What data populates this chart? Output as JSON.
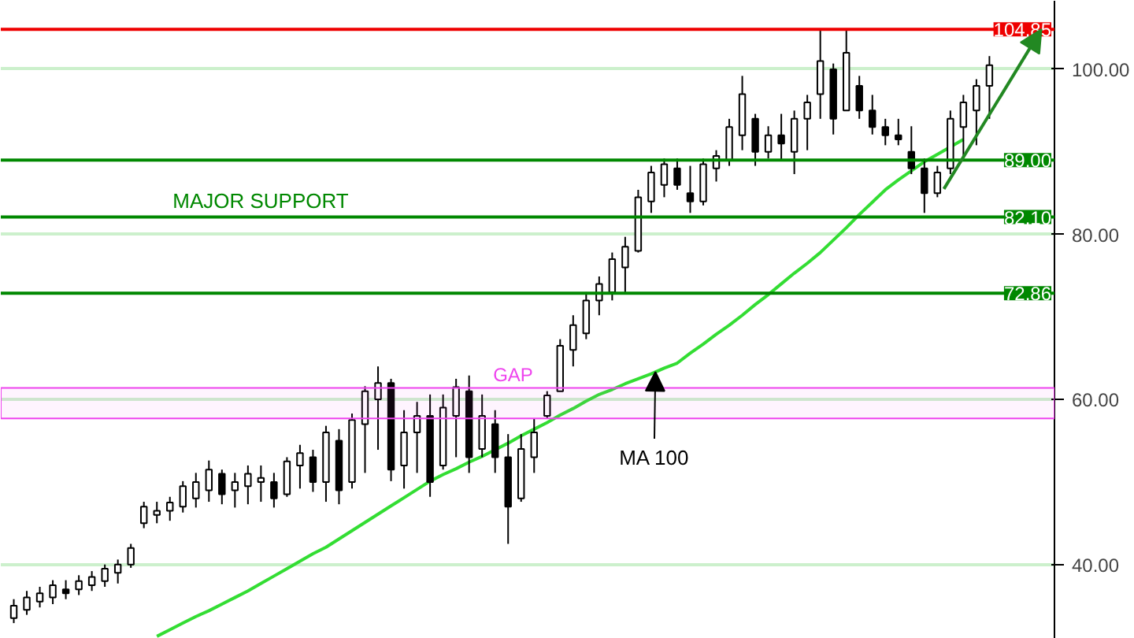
{
  "chart_data": {
    "type": "candlestick",
    "categories": [
      null,
      null,
      null,
      null,
      null,
      null,
      null,
      null,
      null,
      null,
      null,
      null,
      null,
      null,
      null,
      null,
      null,
      null,
      null,
      null,
      null,
      null,
      null,
      null,
      null,
      null,
      null,
      null,
      null,
      null,
      null,
      null,
      null,
      null,
      null,
      null,
      null,
      null,
      null,
      null,
      null,
      null,
      null,
      null,
      null,
      null,
      null,
      null,
      null,
      null,
      null,
      null,
      null,
      null,
      null,
      null,
      null,
      null,
      null,
      null,
      null,
      null,
      null,
      null,
      null,
      null,
      null,
      null,
      null,
      null,
      null,
      null,
      null,
      null,
      null,
      null
    ],
    "ohlc": [
      [
        33.5,
        35.8,
        32.9,
        35
      ],
      [
        34.5,
        36.8,
        33.9,
        36
      ],
      [
        35.5,
        37.3,
        34.8,
        36.5
      ],
      [
        36,
        38.1,
        35.2,
        37.5
      ],
      [
        37,
        38.1,
        35.8,
        36.5
      ],
      [
        37,
        38.7,
        36.3,
        38
      ],
      [
        37.5,
        39.2,
        36.8,
        38.5
      ],
      [
        38,
        40,
        37.3,
        39.5
      ],
      [
        39,
        40.6,
        37.7,
        40
      ],
      [
        40,
        42.5,
        39.6,
        42
      ],
      [
        45,
        47.6,
        44.4,
        47
      ],
      [
        46,
        47.6,
        45,
        46.5
      ],
      [
        46.5,
        48.2,
        45.3,
        47.5
      ],
      [
        47,
        50.1,
        46.3,
        49.5
      ],
      [
        48,
        51.1,
        46.9,
        50
      ],
      [
        49,
        52.6,
        47.6,
        51.5
      ],
      [
        51,
        51.5,
        47.3,
        48.5
      ],
      [
        49,
        51.1,
        46.9,
        50
      ],
      [
        49.5,
        52,
        47.3,
        51
      ],
      [
        50,
        52,
        47.6,
        50.5
      ],
      [
        50,
        51.1,
        46.9,
        48
      ],
      [
        48.5,
        53,
        48.2,
        52.5
      ],
      [
        52,
        54.5,
        49.2,
        53.5
      ],
      [
        53,
        53.9,
        48.8,
        50
      ],
      [
        50,
        56.8,
        47.6,
        56
      ],
      [
        55,
        56.4,
        47.3,
        49
      ],
      [
        50,
        58.3,
        49.2,
        57.5
      ],
      [
        57,
        61.6,
        51.1,
        61
      ],
      [
        60,
        64,
        53.9,
        62
      ],
      [
        62,
        62.5,
        50.1,
        51.5
      ],
      [
        52,
        58.7,
        49.2,
        56
      ],
      [
        56,
        59.7,
        51.1,
        58
      ],
      [
        58,
        60.6,
        48.2,
        50
      ],
      [
        52,
        60.6,
        51.5,
        59
      ],
      [
        58,
        62.5,
        53,
        61.5
      ],
      [
        61,
        62.9,
        51.1,
        53
      ],
      [
        54,
        60.6,
        53,
        58
      ],
      [
        57,
        58.7,
        51.1,
        53
      ],
      [
        53,
        55.8,
        42.5,
        47
      ],
      [
        48,
        55.8,
        47.6,
        54
      ],
      [
        53,
        57.7,
        51.1,
        56
      ],
      [
        58,
        61,
        57.7,
        60.5
      ],
      [
        61,
        67.3,
        61,
        66.5
      ],
      [
        66,
        70.2,
        64,
        69
      ],
      [
        68,
        73,
        67.3,
        72
      ],
      [
        72,
        74.9,
        70.2,
        74
      ],
      [
        73,
        77.8,
        72,
        77
      ],
      [
        76,
        79.7,
        73,
        78.5
      ],
      [
        78,
        85.4,
        77.8,
        84.5
      ],
      [
        84,
        88.3,
        82.6,
        87.5
      ],
      [
        86,
        89.2,
        84.5,
        88.5
      ],
      [
        88,
        89.2,
        85.4,
        86
      ],
      [
        85,
        88.3,
        82.6,
        84
      ],
      [
        84,
        89.2,
        83.5,
        88.5
      ],
      [
        88,
        90.2,
        86.4,
        89.5
      ],
      [
        89,
        94,
        88.3,
        93
      ],
      [
        92,
        99.2,
        90.2,
        97
      ],
      [
        94,
        94.6,
        88.3,
        90
      ],
      [
        90,
        93.1,
        89.2,
        92
      ],
      [
        92,
        94.6,
        88.9,
        91
      ],
      [
        90,
        95,
        87.3,
        94
      ],
      [
        94,
        96.9,
        90.2,
        96
      ],
      [
        97,
        104.9,
        94,
        101
      ],
      [
        100,
        100.7,
        92.1,
        94
      ],
      [
        95,
        104.9,
        95,
        102
      ],
      [
        98,
        99.2,
        94,
        95
      ],
      [
        95,
        96.9,
        92.1,
        93
      ],
      [
        93,
        94,
        90.8,
        92
      ],
      [
        92,
        94,
        90.8,
        91.5
      ],
      [
        90,
        93.1,
        87.3,
        88
      ],
      [
        88,
        89.2,
        82.6,
        85
      ],
      [
        85,
        88.3,
        84.5,
        87.5
      ],
      [
        88,
        95,
        87.3,
        94
      ],
      [
        93,
        96.9,
        89.2,
        96
      ],
      [
        95,
        98.8,
        90.8,
        98
      ],
      [
        98,
        101.6,
        94,
        100.5
      ]
    ],
    "series": [
      {
        "type": "line",
        "color": "#33dd33",
        "values": [
          null,
          null,
          null,
          null,
          null,
          null,
          null,
          null,
          null,
          null,
          null,
          31.3,
          32.1,
          32.9,
          33.7,
          34.4,
          35.2,
          36.0,
          36.8,
          37.7,
          38.6,
          39.5,
          40.4,
          41.3,
          42.1,
          43.1,
          44.1,
          45.1,
          46.1,
          47.1,
          48.1,
          49.1,
          50.1,
          50.9,
          51.6,
          52.4,
          53.1,
          53.9,
          54.7,
          55.6,
          56.4,
          57.2,
          58.1,
          58.9,
          59.8,
          60.6,
          61.2,
          61.9,
          62.5,
          63.1,
          63.8,
          64.4,
          65.6,
          66.7,
          67.9,
          69.0,
          70.2,
          71.5,
          72.7,
          74.0,
          75.3,
          76.5,
          77.8,
          79.3,
          80.8,
          82.4,
          83.9,
          85.4,
          86.6,
          87.7,
          88.8,
          89.7,
          90.6,
          91.5,
          null,
          null
        ]
      }
    ],
    "ylim": [
      31,
      108.3
    ],
    "yticks": [
      {
        "value": 40,
        "label": "40.00"
      },
      {
        "value": 60,
        "label": "60.00"
      },
      {
        "value": 80,
        "label": "80.00"
      },
      {
        "value": 100,
        "label": "100.00"
      }
    ],
    "tick_labels": "y",
    "grid": "y",
    "ref_lines": [
      {
        "axis": "y",
        "value": 104.85,
        "label": "104.85",
        "color": "#ee0000"
      },
      {
        "axis": "y",
        "value": 89,
        "label": "89.00",
        "color": "#008800"
      },
      {
        "axis": "y",
        "value": 82.1,
        "label": "82.10",
        "color": "#008800"
      },
      {
        "axis": "y",
        "value": 72.86,
        "label": "72.86",
        "color": "#008800"
      }
    ],
    "bands": [
      {
        "axis": "y",
        "from": 57.7,
        "to": 61.4,
        "label": "GAP",
        "color": "#ee44ee"
      }
    ],
    "annotations": [
      "MAJOR SUPPORT",
      "MA 100"
    ]
  }
}
